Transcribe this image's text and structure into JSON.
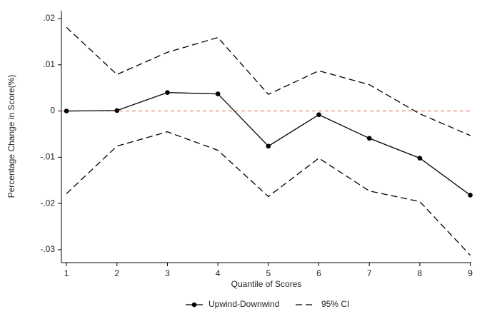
{
  "chart_data": {
    "type": "line",
    "xlabel": "Quantile of Scores",
    "ylabel": "Percentage Change in Score(%)",
    "x": [
      1,
      2,
      3,
      4,
      5,
      6,
      7,
      8,
      9
    ],
    "series": [
      {
        "name": "Upwind-Downwind",
        "color": "#000000",
        "values": [
          0,
          0.0001,
          0.004,
          0.0037,
          -0.0076,
          -0.0008,
          -0.0059,
          -0.0102,
          -0.0182
        ]
      }
    ],
    "ci": {
      "name": "95% CI",
      "color": "#000000",
      "upper": [
        0.0181,
        0.0079,
        0.0127,
        0.0159,
        0.0036,
        0.0087,
        0.0057,
        -0.0006,
        -0.0053
      ],
      "lower": [
        -0.0179,
        -0.0076,
        -0.0045,
        -0.0085,
        -0.0185,
        -0.0102,
        -0.0173,
        -0.0196,
        -0.0312
      ]
    },
    "reference_line": {
      "value": 0,
      "color": "#e0604f"
    },
    "xlim": [
      0.9,
      9.02
    ],
    "ylim": [
      -0.0328,
      0.0217
    ],
    "xticks": [
      1,
      2,
      3,
      4,
      5,
      6,
      7,
      8,
      9
    ],
    "yticks": [
      {
        "value": 0.02,
        "label": ".02"
      },
      {
        "value": 0.01,
        "label": ".01"
      },
      0,
      {
        "value": -0.01,
        "label": "-.01"
      },
      {
        "value": -0.02,
        "label": "-.02"
      },
      {
        "value": -0.03,
        "label": "-.03"
      }
    ],
    "grid": false
  }
}
